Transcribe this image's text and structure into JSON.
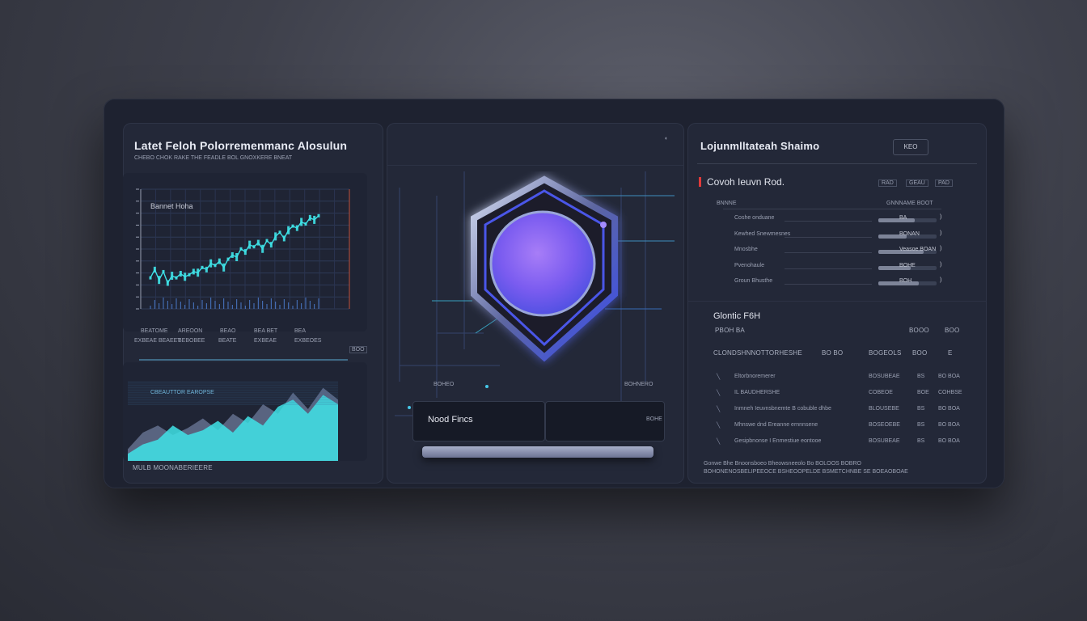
{
  "left_panel": {
    "title": "Latet Feloh Polorremenmanc Alosulun",
    "subtitle": "CHEBO CHOK RAKE THE FEADLE BOL GNOXKERE BNEAT",
    "chart_label": "Bannet Hoha",
    "x_labels": [
      "BEATOME",
      "AREOON",
      "BEAO",
      "BEA BET",
      "BEA"
    ],
    "x_sublabels": [
      "EXBEAE BEAEET",
      "BEBOBEE",
      "BEATE",
      "EXBEAE",
      "EXBEOES"
    ],
    "corner_badge": "BOO",
    "area_label": "CBEAUTTOR EAROPSE",
    "footer": "MULB MOONABERIEERE"
  },
  "middle_panel": {
    "corner_dot": "◐",
    "left_caption": "BOHEO",
    "right_caption": "BOHNERO",
    "button_label": "Nood Fincs",
    "button_right_label": "BOHE"
  },
  "right_panel": {
    "title": "Lojunmlltateah Shaimo",
    "key_button": "KEO",
    "section1_title": "Covoh Ieuvn Rod.",
    "section1_badges": [
      "RAD",
      "GEAU",
      "PAD"
    ],
    "section1_header_left": "BNNNE",
    "section1_header_right": "GNNNAME BOOT",
    "rows1": [
      {
        "label": "Coshe onduane",
        "value": "BA",
        "fill": 0.62
      },
      {
        "label": "Kewhed Snewmesnes",
        "value": "BONAN",
        "fill": 0.48
      },
      {
        "label": "Mnosbhe",
        "value": "Veasoe BOAN",
        "fill": 0.78
      },
      {
        "label": "Pvenohaule",
        "value": "BOHE",
        "fill": 0.55
      },
      {
        "label": "Groun Bhusthe",
        "value": "BOH",
        "fill": 0.7
      }
    ],
    "section2_title": "Glontic F6H",
    "section2_sub_left": "PBOH BA",
    "section2_sub_right": [
      "BOOO",
      "BOO"
    ],
    "section2_header": "CLONDSHNNOTTORHESHE",
    "section2_header_right": [
      "BO BO",
      "BOGEOLS",
      "BOO",
      "E"
    ],
    "rows2": [
      {
        "label": "Eltorbnoremerer",
        "a": "BOSUBEAE",
        "b": "BS",
        "c": "BO BOA"
      },
      {
        "label": "IL BAUDHERSHE",
        "a": "COBEOE",
        "b": "BOE",
        "c": "COHBSE"
      },
      {
        "label": "Inmneh Ieuvnsbnemte B cobuble dhbe",
        "a": "BLOUSEBE",
        "b": "BS",
        "c": "BO BOA"
      },
      {
        "label": "Mhnswe dnd Ereanne ernnnsene",
        "a": "BOSEOEBE",
        "b": "BS",
        "c": "BO BOA"
      },
      {
        "label": "Gesipbnonse I Enmestiue eontooe",
        "a": "BOSUBEAE",
        "b": "BS",
        "c": "BO BOA"
      }
    ],
    "footer_line1": "Gonwe Bhe Bnoonsboeo Bheowsneeolo Bo BOLOOS BOBRO",
    "footer_line2": "BOHONENOSBELIPEEOCE BSHEOOPELDE BSMETCHNBE SE BOEAOBOAE"
  },
  "colors": {
    "accent_cyan": "#3fe3e8",
    "accent_purple": "#8c5cf0",
    "accent_blue": "#4b58f0",
    "marker_red": "#e03a3a"
  },
  "chart_data": [
    {
      "type": "line",
      "title": "Bannet Hoha",
      "xlabel": "",
      "ylabel": "",
      "x": [
        1,
        2,
        3,
        4,
        5,
        6,
        7,
        8,
        9,
        10,
        11,
        12,
        13,
        14,
        15,
        16,
        17,
        18,
        19,
        20,
        21,
        22,
        23,
        24,
        25,
        26,
        27,
        28,
        29,
        30,
        31,
        32,
        33,
        34,
        35,
        36,
        37,
        38,
        39,
        40
      ],
      "series": [
        {
          "values": [
            30,
            38,
            28,
            36,
            25,
            32,
            30,
            34,
            31,
            33,
            36,
            35,
            40,
            38,
            44,
            42,
            46,
            40,
            48,
            52,
            50,
            58,
            55,
            62,
            60,
            64,
            58,
            66,
            62,
            70,
            74,
            68,
            76,
            80,
            78,
            84,
            82,
            88,
            86,
            90
          ]
        }
      ],
      "ylim": [
        0,
        100
      ],
      "grid": true
    },
    {
      "type": "area",
      "title": "",
      "x": [
        1,
        2,
        3,
        4,
        5,
        6,
        7,
        8,
        9,
        10,
        11,
        12,
        13,
        14,
        15
      ],
      "series": [
        {
          "values": [
            10,
            24,
            30,
            22,
            28,
            36,
            26,
            40,
            32,
            48,
            40,
            58,
            44,
            62,
            52
          ]
        },
        {
          "values": [
            6,
            14,
            18,
            30,
            22,
            26,
            34,
            24,
            38,
            30,
            46,
            52,
            40,
            56,
            48
          ]
        }
      ],
      "ylim": [
        0,
        70
      ]
    }
  ]
}
